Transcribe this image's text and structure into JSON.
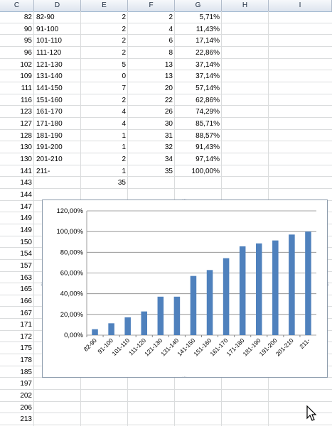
{
  "columns": [
    "C",
    "D",
    "E",
    "F",
    "G",
    "H",
    "I"
  ],
  "rows": [
    {
      "c": "82",
      "d": "82-90",
      "e": "2",
      "f": "2",
      "g": "5,71%"
    },
    {
      "c": "90",
      "d": "91-100",
      "e": "2",
      "f": "4",
      "g": "11,43%"
    },
    {
      "c": "95",
      "d": "101-110",
      "e": "2",
      "f": "6",
      "g": "17,14%"
    },
    {
      "c": "96",
      "d": "111-120",
      "e": "2",
      "f": "8",
      "g": "22,86%"
    },
    {
      "c": "102",
      "d": "121-130",
      "e": "5",
      "f": "13",
      "g": "37,14%"
    },
    {
      "c": "109",
      "d": "131-140",
      "e": "0",
      "f": "13",
      "g": "37,14%"
    },
    {
      "c": "111",
      "d": "141-150",
      "e": "7",
      "f": "20",
      "g": "57,14%"
    },
    {
      "c": "116",
      "d": "151-160",
      "e": "2",
      "f": "22",
      "g": "62,86%"
    },
    {
      "c": "123",
      "d": "161-170",
      "e": "4",
      "f": "26",
      "g": "74,29%"
    },
    {
      "c": "127",
      "d": "171-180",
      "e": "4",
      "f": "30",
      "g": "85,71%"
    },
    {
      "c": "128",
      "d": "181-190",
      "e": "1",
      "f": "31",
      "g": "88,57%"
    },
    {
      "c": "130",
      "d": "191-200",
      "e": "1",
      "f": "32",
      "g": "91,43%"
    },
    {
      "c": "130",
      "d": "201-210",
      "e": "2",
      "f": "34",
      "g": "97,14%"
    },
    {
      "c": "141",
      "d": "211-",
      "e": "1",
      "f": "35",
      "g": "100,00%"
    },
    {
      "c": "143",
      "d": "",
      "e": "35",
      "f": "",
      "g": ""
    },
    {
      "c": "144",
      "d": "",
      "e": "",
      "f": "",
      "g": ""
    },
    {
      "c": "147",
      "d": "",
      "e": "",
      "f": "",
      "g": ""
    },
    {
      "c": "149",
      "d": "",
      "e": "",
      "f": "",
      "g": ""
    },
    {
      "c": "149",
      "d": "",
      "e": "",
      "f": "",
      "g": ""
    },
    {
      "c": "150",
      "d": "",
      "e": "",
      "f": "",
      "g": ""
    },
    {
      "c": "154",
      "d": "",
      "e": "",
      "f": "",
      "g": ""
    },
    {
      "c": "157",
      "d": "",
      "e": "",
      "f": "",
      "g": ""
    },
    {
      "c": "163",
      "d": "",
      "e": "",
      "f": "",
      "g": ""
    },
    {
      "c": "165",
      "d": "",
      "e": "",
      "f": "",
      "g": ""
    },
    {
      "c": "166",
      "d": "",
      "e": "",
      "f": "",
      "g": ""
    },
    {
      "c": "167",
      "d": "",
      "e": "",
      "f": "",
      "g": ""
    },
    {
      "c": "171",
      "d": "",
      "e": "",
      "f": "",
      "g": ""
    },
    {
      "c": "172",
      "d": "",
      "e": "",
      "f": "",
      "g": ""
    },
    {
      "c": "175",
      "d": "",
      "e": "",
      "f": "",
      "g": ""
    },
    {
      "c": "178",
      "d": "",
      "e": "",
      "f": "",
      "g": ""
    },
    {
      "c": "185",
      "d": "",
      "e": "",
      "f": "",
      "g": ""
    },
    {
      "c": "197",
      "d": "",
      "e": "",
      "f": "",
      "g": ""
    },
    {
      "c": "202",
      "d": "",
      "e": "",
      "f": "",
      "g": ""
    },
    {
      "c": "206",
      "d": "",
      "e": "",
      "f": "",
      "g": ""
    },
    {
      "c": "213",
      "d": "",
      "e": "",
      "f": "",
      "g": ""
    }
  ],
  "colors": {
    "bar": "#4f81bd",
    "grid": "#868686",
    "header_bg": "#dde4ee"
  },
  "cursor_icon": "mouse-pointer-icon",
  "chart_data": {
    "type": "bar",
    "categories": [
      "82-90",
      "91-100",
      "101-110",
      "111-120",
      "121-130",
      "131-140",
      "141-150",
      "151-160",
      "161-170",
      "171-180",
      "181-190",
      "191-200",
      "201-210",
      "211-"
    ],
    "values": [
      5.71,
      11.43,
      17.14,
      22.86,
      37.14,
      37.14,
      57.14,
      62.86,
      74.29,
      85.71,
      88.57,
      91.43,
      97.14,
      100.0
    ],
    "y_ticks": [
      "0,00%",
      "20,00%",
      "40,00%",
      "60,00%",
      "80,00%",
      "100,00%",
      "120,00%"
    ],
    "ylim": [
      0,
      120
    ],
    "grid": true,
    "legend": "none",
    "title": "",
    "xlabel": "",
    "ylabel": ""
  }
}
